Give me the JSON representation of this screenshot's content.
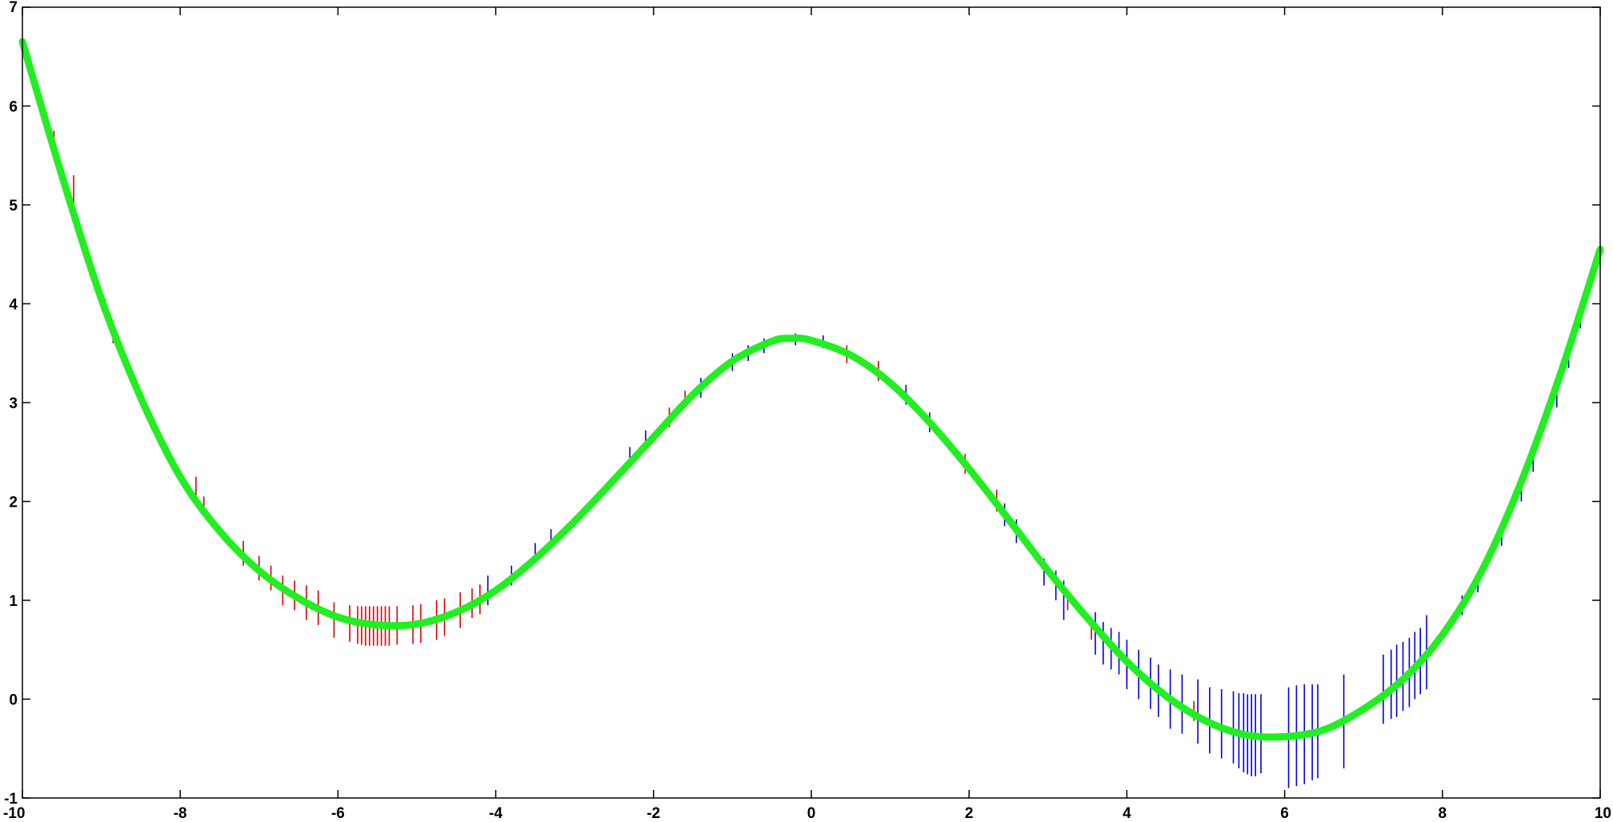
{
  "chart_data": {
    "type": "line",
    "title": "",
    "xlabel": "",
    "ylabel": "",
    "xlim": [
      -10,
      10
    ],
    "ylim": [
      -1,
      7
    ],
    "grid": false,
    "x_ticks": [
      "-10",
      "-8",
      "-6",
      "-4",
      "-2",
      "0",
      "2",
      "4",
      "6",
      "8",
      "10"
    ],
    "y_ticks": [
      "-1",
      "0",
      "1",
      "2",
      "3",
      "4",
      "5",
      "6",
      "7"
    ],
    "colors": {
      "curve": "#22ee22",
      "red_marks": "#dd0000",
      "blue_marks": "#0000dd",
      "axes": "#000000"
    },
    "series": [
      {
        "x": [
          -10,
          -9.5,
          -9,
          -8.5,
          -8,
          -7.5,
          -7,
          -6.5,
          -6,
          -5.5,
          -5,
          -4.5,
          -4,
          -3.5,
          -3,
          -2.5,
          -2,
          -1.5,
          -1,
          -0.5,
          -0.25,
          0,
          0.5,
          1,
          1.5,
          2,
          2.5,
          3,
          3.5,
          4,
          4.5,
          5,
          5.5,
          6,
          6.5,
          7,
          7.5,
          8,
          8.5,
          9,
          9.5,
          10
        ],
        "y": [
          6.65,
          5.3,
          4.05,
          3.05,
          2.25,
          1.7,
          1.3,
          1.02,
          0.83,
          0.75,
          0.76,
          0.88,
          1.1,
          1.42,
          1.8,
          2.22,
          2.65,
          3.08,
          3.42,
          3.62,
          3.65,
          3.63,
          3.48,
          3.2,
          2.8,
          2.33,
          1.82,
          1.3,
          0.82,
          0.38,
          0.03,
          -0.22,
          -0.36,
          -0.38,
          -0.31,
          -0.1,
          0.2,
          0.65,
          1.3,
          2.2,
          3.3,
          4.55
        ]
      }
    ],
    "marks": {
      "red": [
        {
          "x": -9.6,
          "y0": 5.45,
          "y1": 5.75
        },
        {
          "x": -9.35,
          "y0": 5.0,
          "y1": 5.3
        },
        {
          "x": -8.95,
          "y0": 3.85,
          "y1": 4.05
        },
        {
          "x": -8.85,
          "y0": 3.6,
          "y1": 3.8
        },
        {
          "x": -7.8,
          "y0": 2.05,
          "y1": 2.25
        },
        {
          "x": -7.7,
          "y0": 1.85,
          "y1": 2.05
        },
        {
          "x": -7.2,
          "y0": 1.35,
          "y1": 1.6
        },
        {
          "x": -7.0,
          "y0": 1.2,
          "y1": 1.45
        },
        {
          "x": -6.85,
          "y0": 1.1,
          "y1": 1.35
        },
        {
          "x": -6.7,
          "y0": 0.95,
          "y1": 1.25
        },
        {
          "x": -6.55,
          "y0": 0.9,
          "y1": 1.2
        },
        {
          "x": -6.4,
          "y0": 0.8,
          "y1": 1.15
        },
        {
          "x": -6.25,
          "y0": 0.75,
          "y1": 1.1
        },
        {
          "x": -6.05,
          "y0": 0.62,
          "y1": 0.98
        },
        {
          "x": -5.85,
          "y0": 0.58,
          "y1": 0.95
        },
        {
          "x": -5.75,
          "y0": 0.56,
          "y1": 0.94
        },
        {
          "x": -5.7,
          "y0": 0.55,
          "y1": 0.94
        },
        {
          "x": -5.65,
          "y0": 0.54,
          "y1": 0.94
        },
        {
          "x": -5.6,
          "y0": 0.54,
          "y1": 0.94
        },
        {
          "x": -5.55,
          "y0": 0.54,
          "y1": 0.94
        },
        {
          "x": -5.5,
          "y0": 0.54,
          "y1": 0.94
        },
        {
          "x": -5.45,
          "y0": 0.54,
          "y1": 0.94
        },
        {
          "x": -5.4,
          "y0": 0.54,
          "y1": 0.94
        },
        {
          "x": -5.35,
          "y0": 0.54,
          "y1": 0.94
        },
        {
          "x": -5.25,
          "y0": 0.55,
          "y1": 0.94
        },
        {
          "x": -5.05,
          "y0": 0.56,
          "y1": 0.95
        },
        {
          "x": -4.95,
          "y0": 0.57,
          "y1": 0.96
        },
        {
          "x": -4.75,
          "y0": 0.6,
          "y1": 1.0
        },
        {
          "x": -4.65,
          "y0": 0.64,
          "y1": 1.02
        },
        {
          "x": -4.45,
          "y0": 0.72,
          "y1": 1.08
        },
        {
          "x": -4.3,
          "y0": 0.82,
          "y1": 1.12
        },
        {
          "x": -4.2,
          "y0": 0.86,
          "y1": 1.16
        },
        {
          "x": -1.8,
          "y0": 2.75,
          "y1": 2.95
        },
        {
          "x": -1.6,
          "y0": 2.95,
          "y1": 3.12
        },
        {
          "x": 0.45,
          "y0": 3.4,
          "y1": 3.58
        },
        {
          "x": 0.85,
          "y0": 3.22,
          "y1": 3.42
        },
        {
          "x": 1.95,
          "y0": 2.28,
          "y1": 2.48
        },
        {
          "x": 2.35,
          "y0": 1.9,
          "y1": 2.12
        },
        {
          "x": 3.25,
          "y0": 0.9,
          "y1": 1.1
        },
        {
          "x": 3.55,
          "y0": 0.6,
          "y1": 0.8
        },
        {
          "x": 4.0,
          "y0": 0.18,
          "y1": 0.45
        },
        {
          "x": 4.55,
          "y0": -0.15,
          "y1": 0.08
        },
        {
          "x": 4.85,
          "y0": -0.22,
          "y1": -0.02
        }
      ],
      "blue": [
        {
          "x": -4.1,
          "y0": 0.95,
          "y1": 1.25
        },
        {
          "x": -3.8,
          "y0": 1.15,
          "y1": 1.35
        },
        {
          "x": -3.5,
          "y0": 1.38,
          "y1": 1.58
        },
        {
          "x": -3.3,
          "y0": 1.52,
          "y1": 1.72
        },
        {
          "x": -2.3,
          "y0": 2.35,
          "y1": 2.55
        },
        {
          "x": -2.1,
          "y0": 2.52,
          "y1": 2.72
        },
        {
          "x": -1.4,
          "y0": 3.05,
          "y1": 3.25
        },
        {
          "x": -1.0,
          "y0": 3.32,
          "y1": 3.5
        },
        {
          "x": -0.8,
          "y0": 3.42,
          "y1": 3.58
        },
        {
          "x": -0.6,
          "y0": 3.5,
          "y1": 3.65
        },
        {
          "x": -0.2,
          "y0": 3.58,
          "y1": 3.7
        },
        {
          "x": 0.15,
          "y0": 3.55,
          "y1": 3.68
        },
        {
          "x": 1.2,
          "y0": 2.98,
          "y1": 3.18
        },
        {
          "x": 1.5,
          "y0": 2.7,
          "y1": 2.9
        },
        {
          "x": 2.45,
          "y0": 1.75,
          "y1": 1.98
        },
        {
          "x": 2.6,
          "y0": 1.58,
          "y1": 1.82
        },
        {
          "x": 2.95,
          "y0": 1.15,
          "y1": 1.42
        },
        {
          "x": 3.1,
          "y0": 1.0,
          "y1": 1.3
        },
        {
          "x": 3.2,
          "y0": 0.8,
          "y1": 1.2
        },
        {
          "x": 3.6,
          "y0": 0.45,
          "y1": 0.88
        },
        {
          "x": 3.7,
          "y0": 0.35,
          "y1": 0.78
        },
        {
          "x": 3.8,
          "y0": 0.3,
          "y1": 0.72
        },
        {
          "x": 3.9,
          "y0": 0.25,
          "y1": 0.68
        },
        {
          "x": 4.0,
          "y0": 0.1,
          "y1": 0.6
        },
        {
          "x": 4.15,
          "y0": 0.0,
          "y1": 0.5
        },
        {
          "x": 4.3,
          "y0": -0.1,
          "y1": 0.42
        },
        {
          "x": 4.4,
          "y0": -0.18,
          "y1": 0.35
        },
        {
          "x": 4.55,
          "y0": -0.3,
          "y1": 0.3
        },
        {
          "x": 4.7,
          "y0": -0.35,
          "y1": 0.25
        },
        {
          "x": 4.9,
          "y0": -0.45,
          "y1": 0.2
        },
        {
          "x": 5.05,
          "y0": -0.55,
          "y1": 0.12
        },
        {
          "x": 5.2,
          "y0": -0.6,
          "y1": 0.1
        },
        {
          "x": 5.35,
          "y0": -0.65,
          "y1": 0.08
        },
        {
          "x": 5.42,
          "y0": -0.7,
          "y1": 0.06
        },
        {
          "x": 5.48,
          "y0": -0.74,
          "y1": 0.06
        },
        {
          "x": 5.53,
          "y0": -0.76,
          "y1": 0.05
        },
        {
          "x": 5.58,
          "y0": -0.78,
          "y1": 0.05
        },
        {
          "x": 5.63,
          "y0": -0.78,
          "y1": 0.05
        },
        {
          "x": 5.7,
          "y0": -0.75,
          "y1": 0.05
        },
        {
          "x": 6.05,
          "y0": -0.9,
          "y1": 0.12
        },
        {
          "x": 6.15,
          "y0": -0.88,
          "y1": 0.14
        },
        {
          "x": 6.25,
          "y0": -0.86,
          "y1": 0.15
        },
        {
          "x": 6.35,
          "y0": -0.82,
          "y1": 0.15
        },
        {
          "x": 6.42,
          "y0": -0.8,
          "y1": 0.15
        },
        {
          "x": 6.75,
          "y0": -0.7,
          "y1": 0.25
        },
        {
          "x": 7.25,
          "y0": -0.25,
          "y1": 0.45
        },
        {
          "x": 7.35,
          "y0": -0.2,
          "y1": 0.5
        },
        {
          "x": 7.42,
          "y0": -0.18,
          "y1": 0.55
        },
        {
          "x": 7.5,
          "y0": -0.12,
          "y1": 0.58
        },
        {
          "x": 7.58,
          "y0": -0.08,
          "y1": 0.62
        },
        {
          "x": 7.65,
          "y0": 0.0,
          "y1": 0.68
        },
        {
          "x": 7.72,
          "y0": 0.05,
          "y1": 0.72
        },
        {
          "x": 7.8,
          "y0": 0.1,
          "y1": 0.85
        },
        {
          "x": 8.25,
          "y0": 0.85,
          "y1": 1.05
        },
        {
          "x": 8.45,
          "y0": 1.08,
          "y1": 1.28
        },
        {
          "x": 8.75,
          "y0": 1.55,
          "y1": 1.78
        },
        {
          "x": 9.0,
          "y0": 2.0,
          "y1": 2.25
        },
        {
          "x": 9.15,
          "y0": 2.3,
          "y1": 2.55
        },
        {
          "x": 9.45,
          "y0": 2.95,
          "y1": 3.2
        },
        {
          "x": 9.6,
          "y0": 3.35,
          "y1": 3.55
        },
        {
          "x": 9.75,
          "y0": 3.75,
          "y1": 3.95
        }
      ]
    }
  }
}
